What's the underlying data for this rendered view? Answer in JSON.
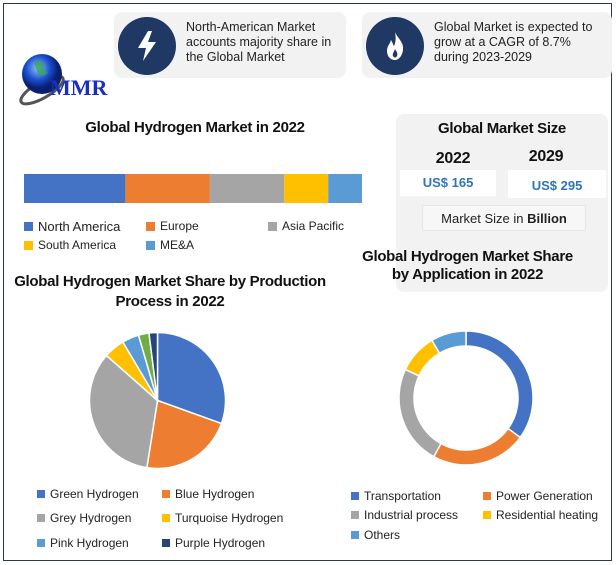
{
  "logo": {
    "text": "MMR"
  },
  "highlights": [
    {
      "icon": "lightning-icon",
      "text": "North-American Market accounts majority share in the Global Market"
    },
    {
      "icon": "flame-icon",
      "text": "Global Market is expected to grow at a CAGR of 8.7% during 2023-2029"
    }
  ],
  "market_size": {
    "title": "Global Market Size",
    "years": [
      "2022",
      "2029"
    ],
    "values": [
      "US$ 165",
      "US$ 295"
    ],
    "unit_label_prefix": "Market Size in ",
    "unit_label_bold": "Billion"
  },
  "chart_data": [
    {
      "type": "bar",
      "orientation": "horizontal-stacked-100",
      "title": "Global Hydrogen Market in 2022",
      "categories": [
        "North America",
        "Europe",
        "Asia Pacific",
        "South America",
        "ME&A"
      ],
      "values": [
        30,
        25,
        22,
        13,
        10
      ],
      "colors": [
        "#4472c4",
        "#ed7d31",
        "#a5a5a5",
        "#ffc000",
        "#5b9bd5"
      ],
      "legend": "bottom"
    },
    {
      "type": "pie",
      "title": "Global Hydrogen Market Share by Production Process in 2022",
      "categories": [
        "Green Hydrogen",
        "Blue Hydrogen",
        "Grey Hydrogen",
        "Turquoise Hydrogen",
        "Pink Hydrogen",
        "",
        "Purple Hydrogen"
      ],
      "values": [
        30.5,
        22,
        34,
        5,
        4,
        2.5,
        2
      ],
      "colors": [
        "#4472c4",
        "#ed7d31",
        "#a5a5a5",
        "#ffc000",
        "#5b9bd5",
        "#70ad47",
        "#264478"
      ],
      "legend": "bottom"
    },
    {
      "type": "pie",
      "variant": "donut",
      "title": "Global Hydrogen Market Share by Application in 2022",
      "categories": [
        "Transportation",
        "Power Generation",
        "Industrial process",
        "Residential heating",
        "Others"
      ],
      "values": [
        35,
        23,
        24,
        9.5,
        8.5
      ],
      "colors": [
        "#4472c4",
        "#ed7d31",
        "#a5a5a5",
        "#ffc000",
        "#5b9bd5"
      ],
      "legend": "bottom"
    }
  ]
}
